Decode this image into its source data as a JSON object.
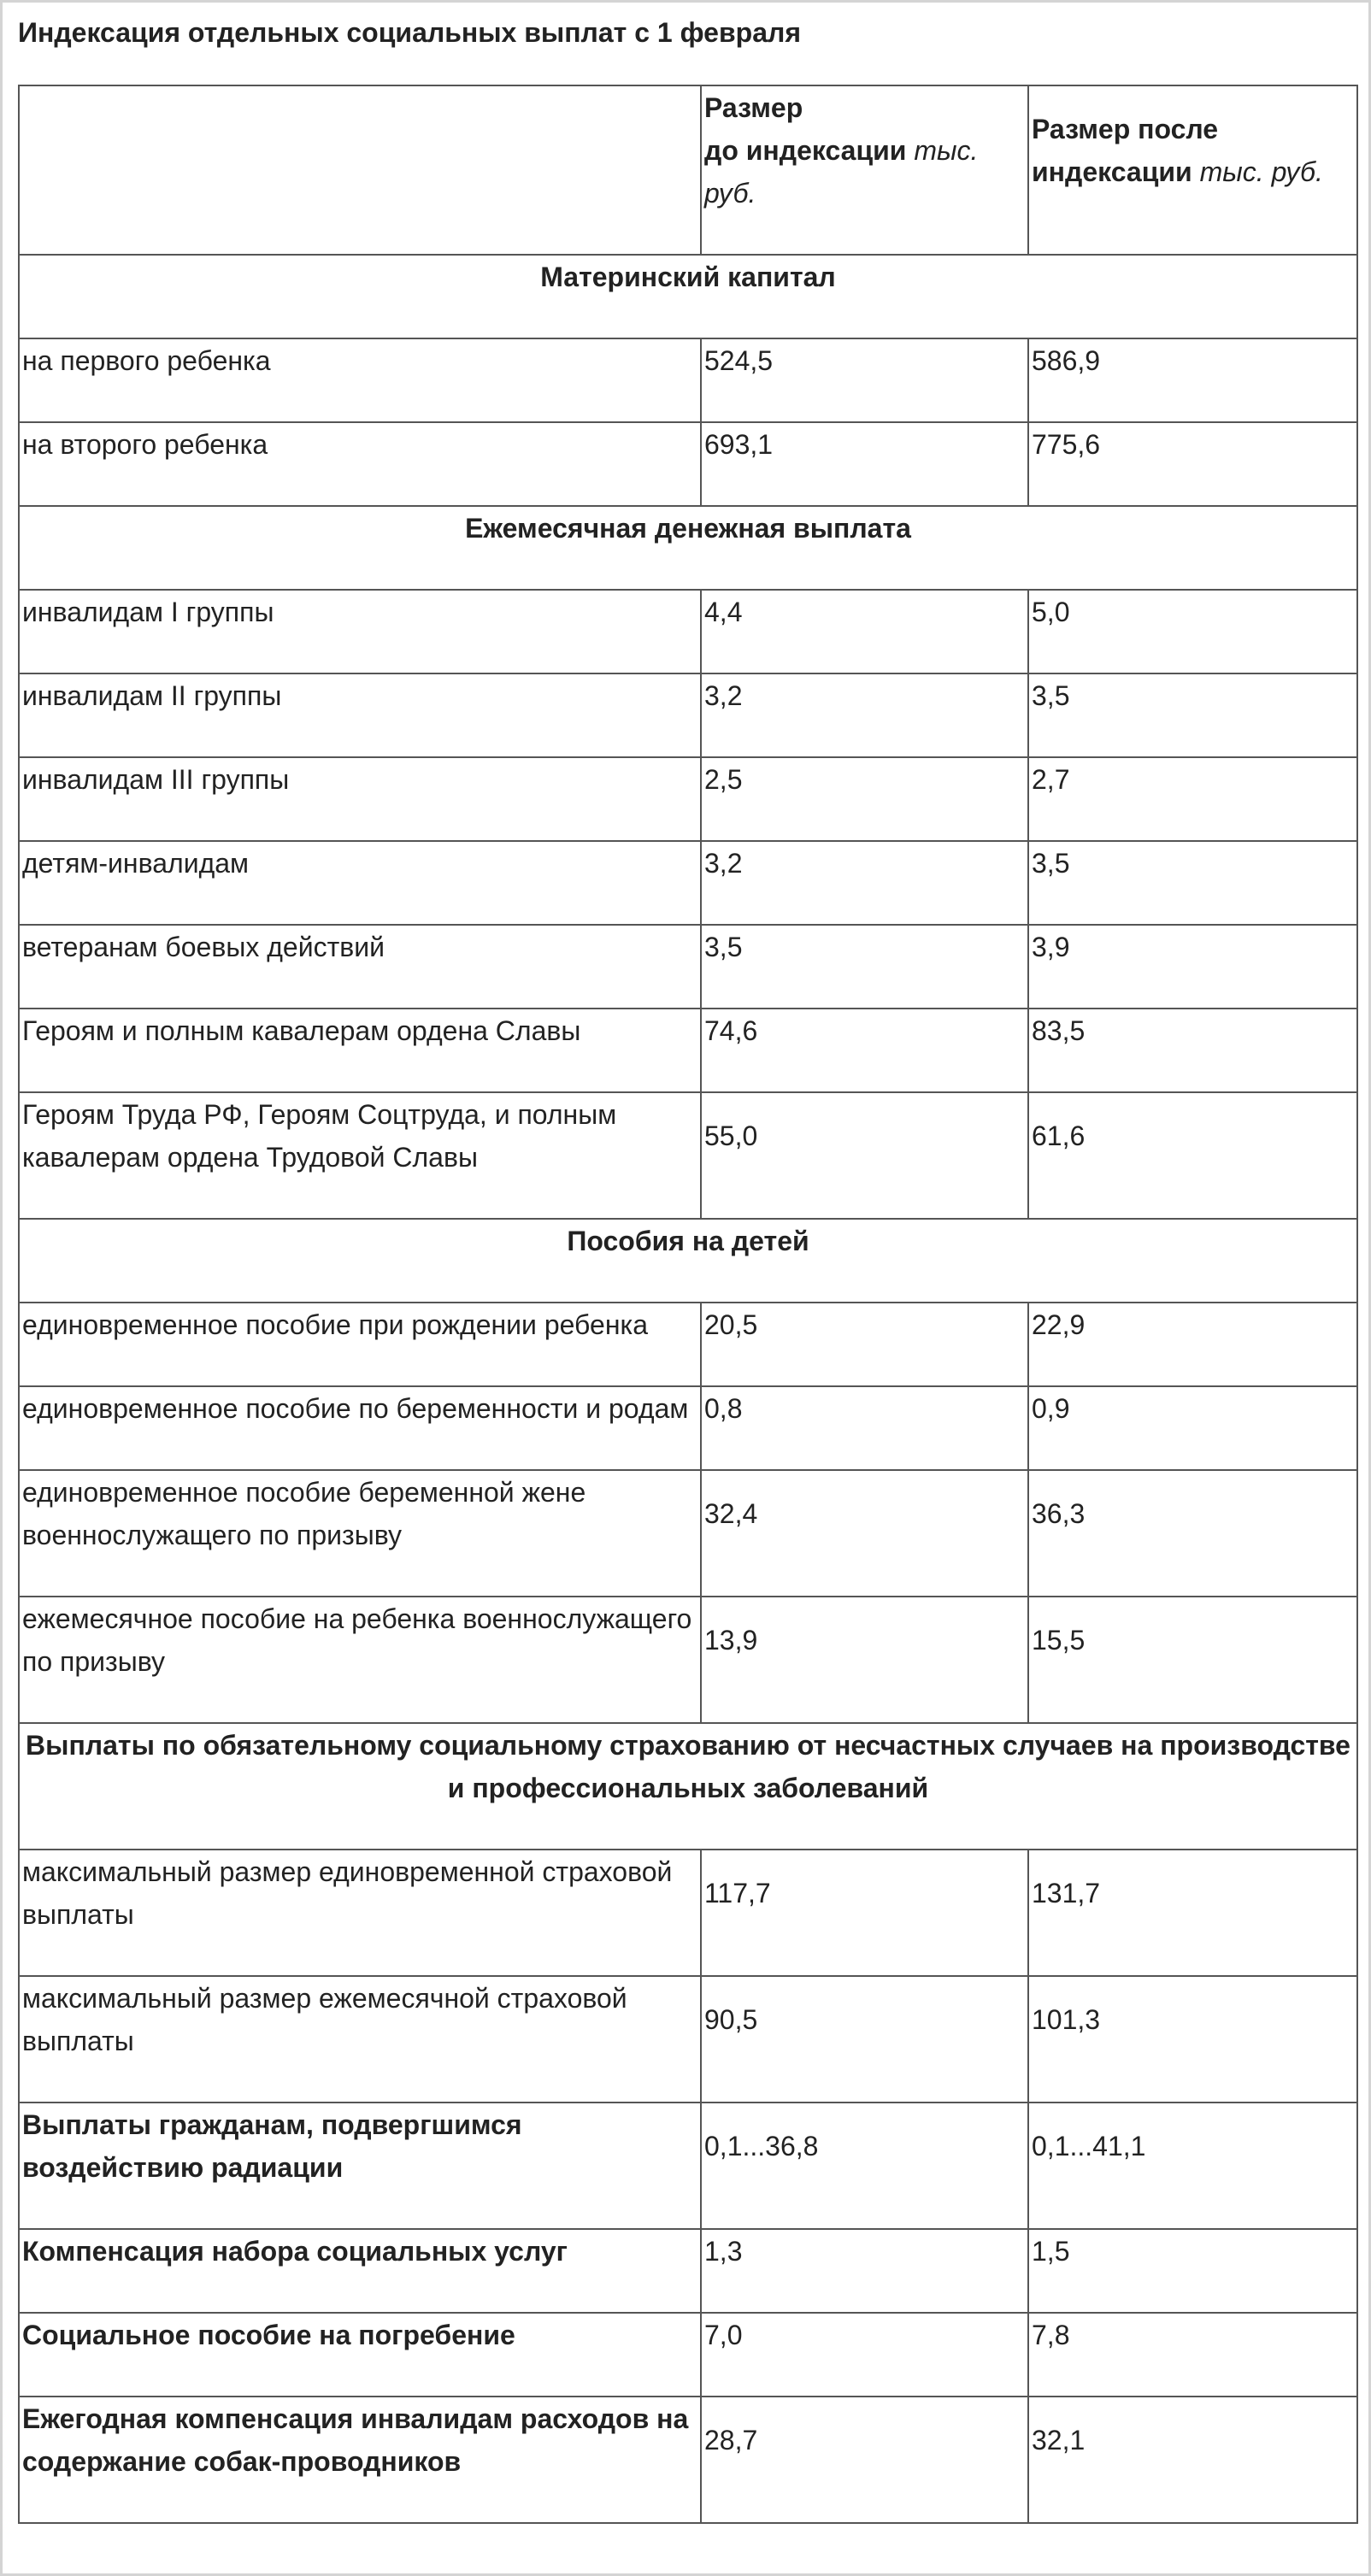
{
  "title": "Индексация отдельных социальных выплат с 1 февраля",
  "header": {
    "col2_bold_line1": "Размер",
    "col2_bold_line2": "до индексации",
    "col2_unit": "тыс. руб.",
    "col3_bold": "Размер после индексации",
    "col3_unit": "тыс. руб."
  },
  "sections": [
    {
      "title": "Материнский капитал",
      "rows": [
        {
          "label": "на первого ребенка",
          "before": "524,5",
          "after": "586,9"
        },
        {
          "label": "на второго ребенка",
          "before": "693,1",
          "after": "775,6"
        }
      ]
    },
    {
      "title": "Ежемесячная денежная выплата",
      "rows": [
        {
          "label": "инвалидам I группы",
          "before": "4,4",
          "after": "5,0"
        },
        {
          "label": "инвалидам II группы",
          "before": "3,2",
          "after": "3,5"
        },
        {
          "label": "инвалидам III группы",
          "before": "2,5",
          "after": "2,7"
        },
        {
          "label": "детям-инвалидам",
          "before": "3,2",
          "after": "3,5"
        },
        {
          "label": "ветеранам боевых действий",
          "before": "3,5",
          "after": "3,9"
        },
        {
          "label": "Героям и полным кавалерам ордена Славы",
          "before": "74,6",
          "after": "83,5"
        },
        {
          "label": "Героям Труда РФ, Героям Соцтруда, и полным кавалерам ордена Трудовой Славы",
          "before": "55,0",
          "after": "61,6"
        }
      ]
    },
    {
      "title": "Пособия на детей",
      "rows": [
        {
          "label": "единовременное пособие при рождении ребенка",
          "before": "20,5",
          "after": "22,9"
        },
        {
          "label": "единовременное пособие по беременности и родам",
          "before": "0,8",
          "after": "0,9"
        },
        {
          "label": "единовременное пособие беременной жене военнослужащего по призыву",
          "before": "32,4",
          "after": "36,3"
        },
        {
          "label": "ежемесячное пособие на ребенка военнослужащего по призыву",
          "before": "13,9",
          "after": "15,5"
        }
      ]
    },
    {
      "title": "Выплаты по обязательному социальному страхованию от несчастных случаев на производстве и профессиональных заболеваний",
      "rows": [
        {
          "label": "максимальный размер единовременной страховой выплаты",
          "before": "117,7",
          "after": "131,7"
        },
        {
          "label": "максимальный размер ежемесячной страховой выплаты",
          "before": "90,5",
          "after": "101,3"
        }
      ]
    }
  ],
  "standalone": [
    {
      "label": "Выплаты гражданам, подвергшимся воздействию радиации",
      "before": "0,1...36,8",
      "after": "0,1...41,1"
    },
    {
      "label": "Компенсация набора социальных услуг",
      "before": "1,3",
      "after": "1,5"
    },
    {
      "label": "Социальное пособие на погребение",
      "before": "7,0",
      "after": "7,8"
    },
    {
      "label": "Ежегодная компенсация инвалидам расходов на содержание собак-проводников",
      "before": "28,7",
      "after": "32,1"
    }
  ]
}
